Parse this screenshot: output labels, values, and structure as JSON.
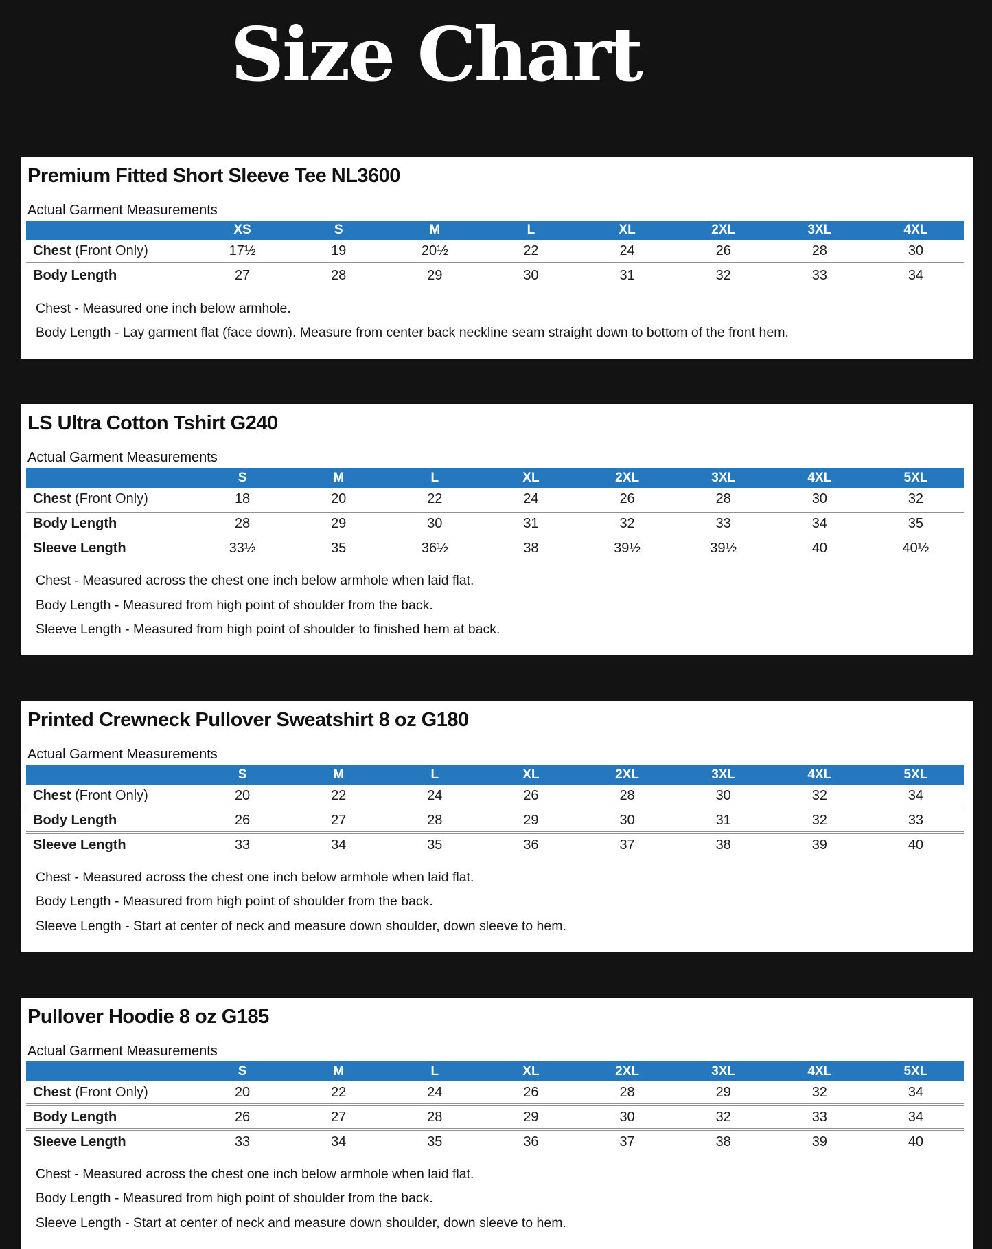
{
  "page": {
    "title": "Size Chart"
  },
  "colors": {
    "page_bg": "#131313",
    "panel_bg": "#ffffff",
    "header_bg": "#2577be",
    "header_text": "#ffffff",
    "title_text": "#ffffff"
  },
  "tables": [
    {
      "title": "Premium Fitted Short Sleeve Tee NL3600",
      "subtitle": "Actual Garment Measurements",
      "sizes": [
        "XS",
        "S",
        "M",
        "L",
        "XL",
        "2XL",
        "3XL",
        "4XL"
      ],
      "rows": [
        {
          "label": "Chest",
          "label_suffix": " (Front Only)",
          "values": [
            "17½",
            "19",
            "20½",
            "22",
            "24",
            "26",
            "28",
            "30"
          ]
        },
        {
          "label": "Body Length",
          "label_suffix": "",
          "values": [
            "27",
            "28",
            "29",
            "30",
            "31",
            "32",
            "33",
            "34"
          ]
        }
      ],
      "notes": [
        "Chest - Measured one inch below armhole.",
        "Body Length - Lay garment flat (face down). Measure from center back neckline seam straight down to bottom of the front hem."
      ]
    },
    {
      "title": "LS Ultra Cotton Tshirt G240",
      "subtitle": "Actual Garment Measurements",
      "sizes": [
        "S",
        "M",
        "L",
        "XL",
        "2XL",
        "3XL",
        "4XL",
        "5XL"
      ],
      "rows": [
        {
          "label": "Chest",
          "label_suffix": " (Front Only)",
          "values": [
            "18",
            "20",
            "22",
            "24",
            "26",
            "28",
            "30",
            "32"
          ]
        },
        {
          "label": "Body Length",
          "label_suffix": "",
          "values": [
            "28",
            "29",
            "30",
            "31",
            "32",
            "33",
            "34",
            "35"
          ]
        },
        {
          "label": "Sleeve Length",
          "label_suffix": "",
          "values": [
            "33½",
            "35",
            "36½",
            "38",
            "39½",
            "39½",
            "40",
            "40½"
          ]
        }
      ],
      "notes": [
        "Chest - Measured across the chest one inch below armhole when laid flat.",
        "Body Length - Measured from high point of shoulder from the back.",
        "Sleeve Length - Measured from high point of shoulder to finished hem at back."
      ]
    },
    {
      "title": "Printed Crewneck Pullover Sweatshirt 8 oz G180",
      "subtitle": "Actual Garment Measurements",
      "sizes": [
        "S",
        "M",
        "L",
        "XL",
        "2XL",
        "3XL",
        "4XL",
        "5XL"
      ],
      "rows": [
        {
          "label": "Chest",
          "label_suffix": " (Front Only)",
          "values": [
            "20",
            "22",
            "24",
            "26",
            "28",
            "30",
            "32",
            "34"
          ]
        },
        {
          "label": "Body Length",
          "label_suffix": "",
          "values": [
            "26",
            "27",
            "28",
            "29",
            "30",
            "31",
            "32",
            "33"
          ]
        },
        {
          "label": "Sleeve Length",
          "label_suffix": "",
          "values": [
            "33",
            "34",
            "35",
            "36",
            "37",
            "38",
            "39",
            "40"
          ]
        }
      ],
      "notes": [
        "Chest - Measured across the chest one inch below armhole when laid flat.",
        "Body Length - Measured from high point of shoulder from the back.",
        "Sleeve Length - Start at center of neck and measure down shoulder, down sleeve to hem."
      ]
    },
    {
      "title": "Pullover Hoodie 8 oz G185",
      "subtitle": "Actual Garment Measurements",
      "sizes": [
        "S",
        "M",
        "L",
        "XL",
        "2XL",
        "3XL",
        "4XL",
        "5XL"
      ],
      "rows": [
        {
          "label": "Chest",
          "label_suffix": " (Front Only)",
          "values": [
            "20",
            "22",
            "24",
            "26",
            "28",
            "29",
            "32",
            "34"
          ]
        },
        {
          "label": "Body Length",
          "label_suffix": "",
          "values": [
            "26",
            "27",
            "28",
            "29",
            "30",
            "32",
            "33",
            "34"
          ]
        },
        {
          "label": "Sleeve Length",
          "label_suffix": "",
          "values": [
            "33",
            "34",
            "35",
            "36",
            "37",
            "38",
            "39",
            "40"
          ]
        }
      ],
      "notes": [
        "Chest - Measured across the chest one inch below armhole when laid flat.",
        "Body Length - Measured from high point of shoulder from the back.",
        "Sleeve Length - Start at center of neck and measure down shoulder, down sleeve to hem."
      ]
    }
  ]
}
